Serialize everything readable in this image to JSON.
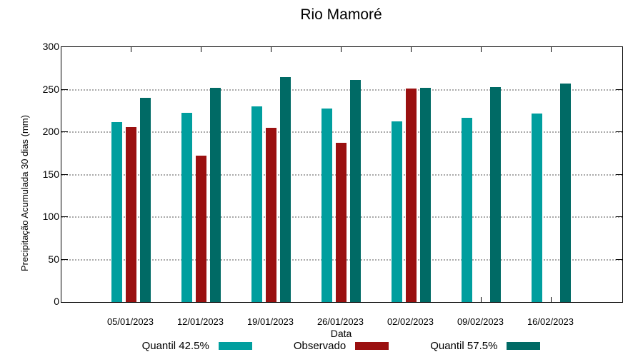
{
  "chart_data": {
    "type": "bar",
    "title": "Rio Mamoré",
    "xlabel": "Data",
    "ylabel": "Precipitação Acumulada 30 dias (mm)",
    "ylim": [
      0,
      300
    ],
    "yticks": [
      0,
      50,
      100,
      150,
      200,
      250,
      300
    ],
    "grid": "horizontal dotted gridlines at interior y ticks",
    "legend_position": "bottom-center, single row",
    "categories": [
      "05/01/2023",
      "12/01/2023",
      "19/01/2023",
      "26/01/2023",
      "02/02/2023",
      "09/02/2023",
      "16/02/2023"
    ],
    "series": [
      {
        "name": "Quantil 42.5%",
        "color": "#009E9E",
        "values": [
          212,
          223,
          230,
          228,
          213,
          217,
          222
        ]
      },
      {
        "name": "Observado",
        "color": "#9A1010",
        "values": [
          206,
          172,
          205,
          187,
          251,
          null,
          null
        ]
      },
      {
        "name": "Quantil 57.5%",
        "color": "#006A65",
        "values": [
          240,
          252,
          265,
          261,
          252,
          253,
          257
        ]
      }
    ]
  },
  "colors": {
    "quantil_425": "#009E9E",
    "observado": "#9A1010",
    "quantil_575": "#006A65",
    "gridline": "#a9a9a9",
    "axis": "#000000",
    "background": "#ffffff"
  }
}
